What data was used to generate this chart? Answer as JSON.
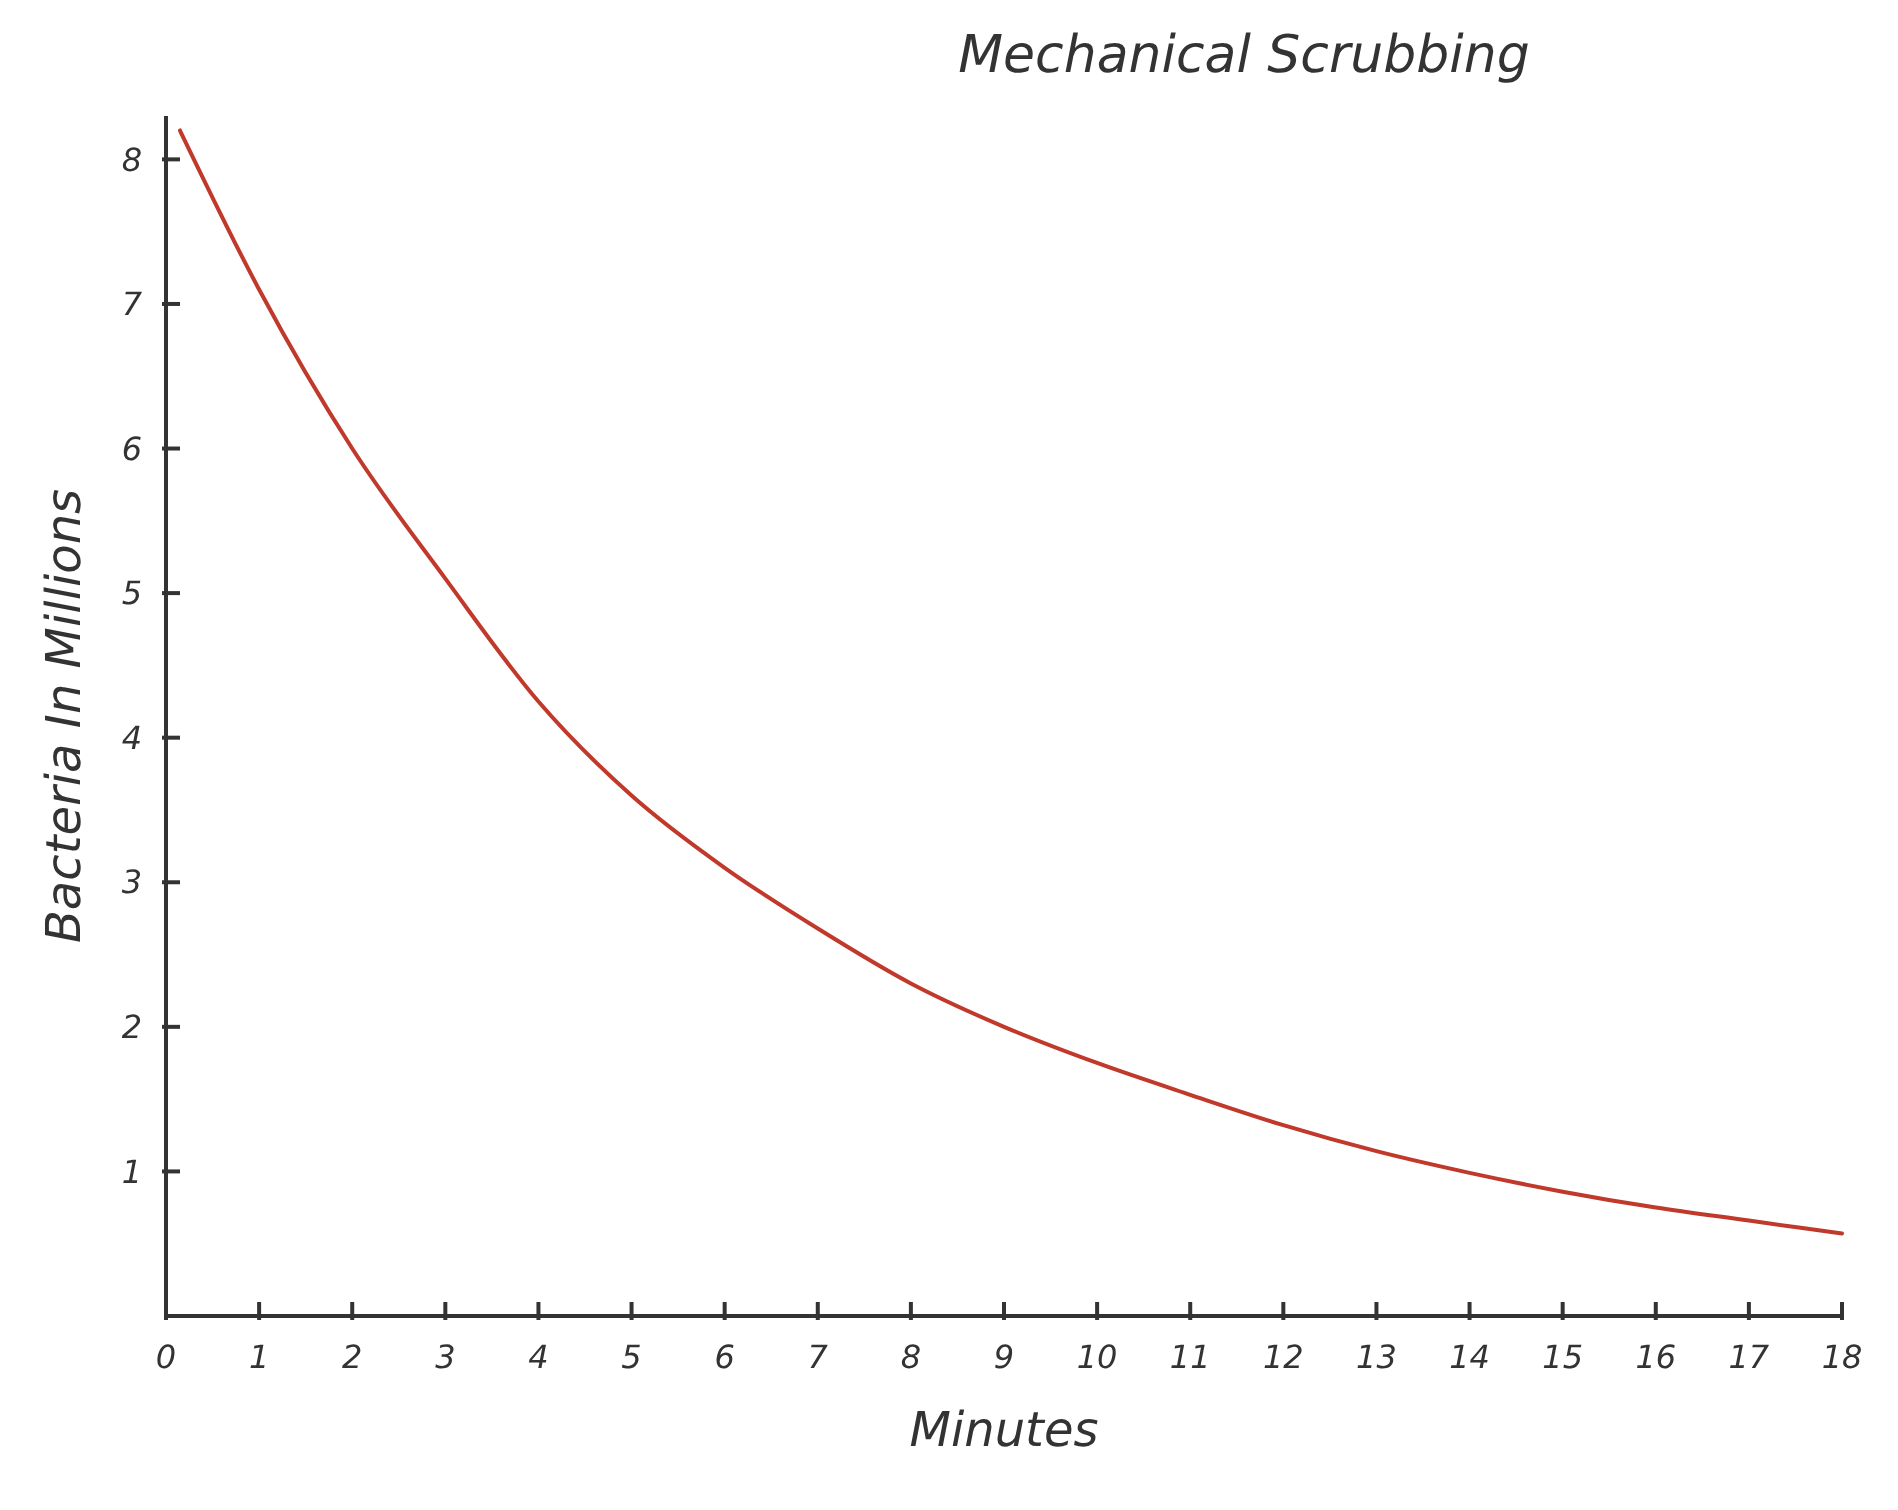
{
  "chart_data": {
    "type": "line",
    "title": "Mechanical Scrubbing",
    "xlabel": "Minutes",
    "ylabel": "Bacteria In Millions",
    "x": [
      0.15,
      1,
      2,
      3,
      4,
      5,
      6,
      7,
      8,
      9,
      10,
      11,
      12,
      13,
      14,
      15,
      16,
      17,
      18
    ],
    "series": [
      {
        "color": "#c0392b",
        "values": [
          8.2,
          7.1,
          6.0,
          5.1,
          4.25,
          3.6,
          3.1,
          2.68,
          2.3,
          2.0,
          1.75,
          1.53,
          1.32,
          1.14,
          0.99,
          0.86,
          0.75,
          0.66,
          0.57
        ]
      }
    ],
    "xlim": [
      0,
      18
    ],
    "xticks": [
      0,
      1,
      2,
      3,
      4,
      5,
      6,
      7,
      8,
      9,
      10,
      11,
      12,
      13,
      14,
      15,
      16,
      17,
      18
    ],
    "ylim": [
      0,
      8.3
    ],
    "yticks": [
      1,
      2,
      3,
      4,
      5,
      6,
      7,
      8
    ],
    "grid": false,
    "marker": "none",
    "line_style": "solid"
  }
}
